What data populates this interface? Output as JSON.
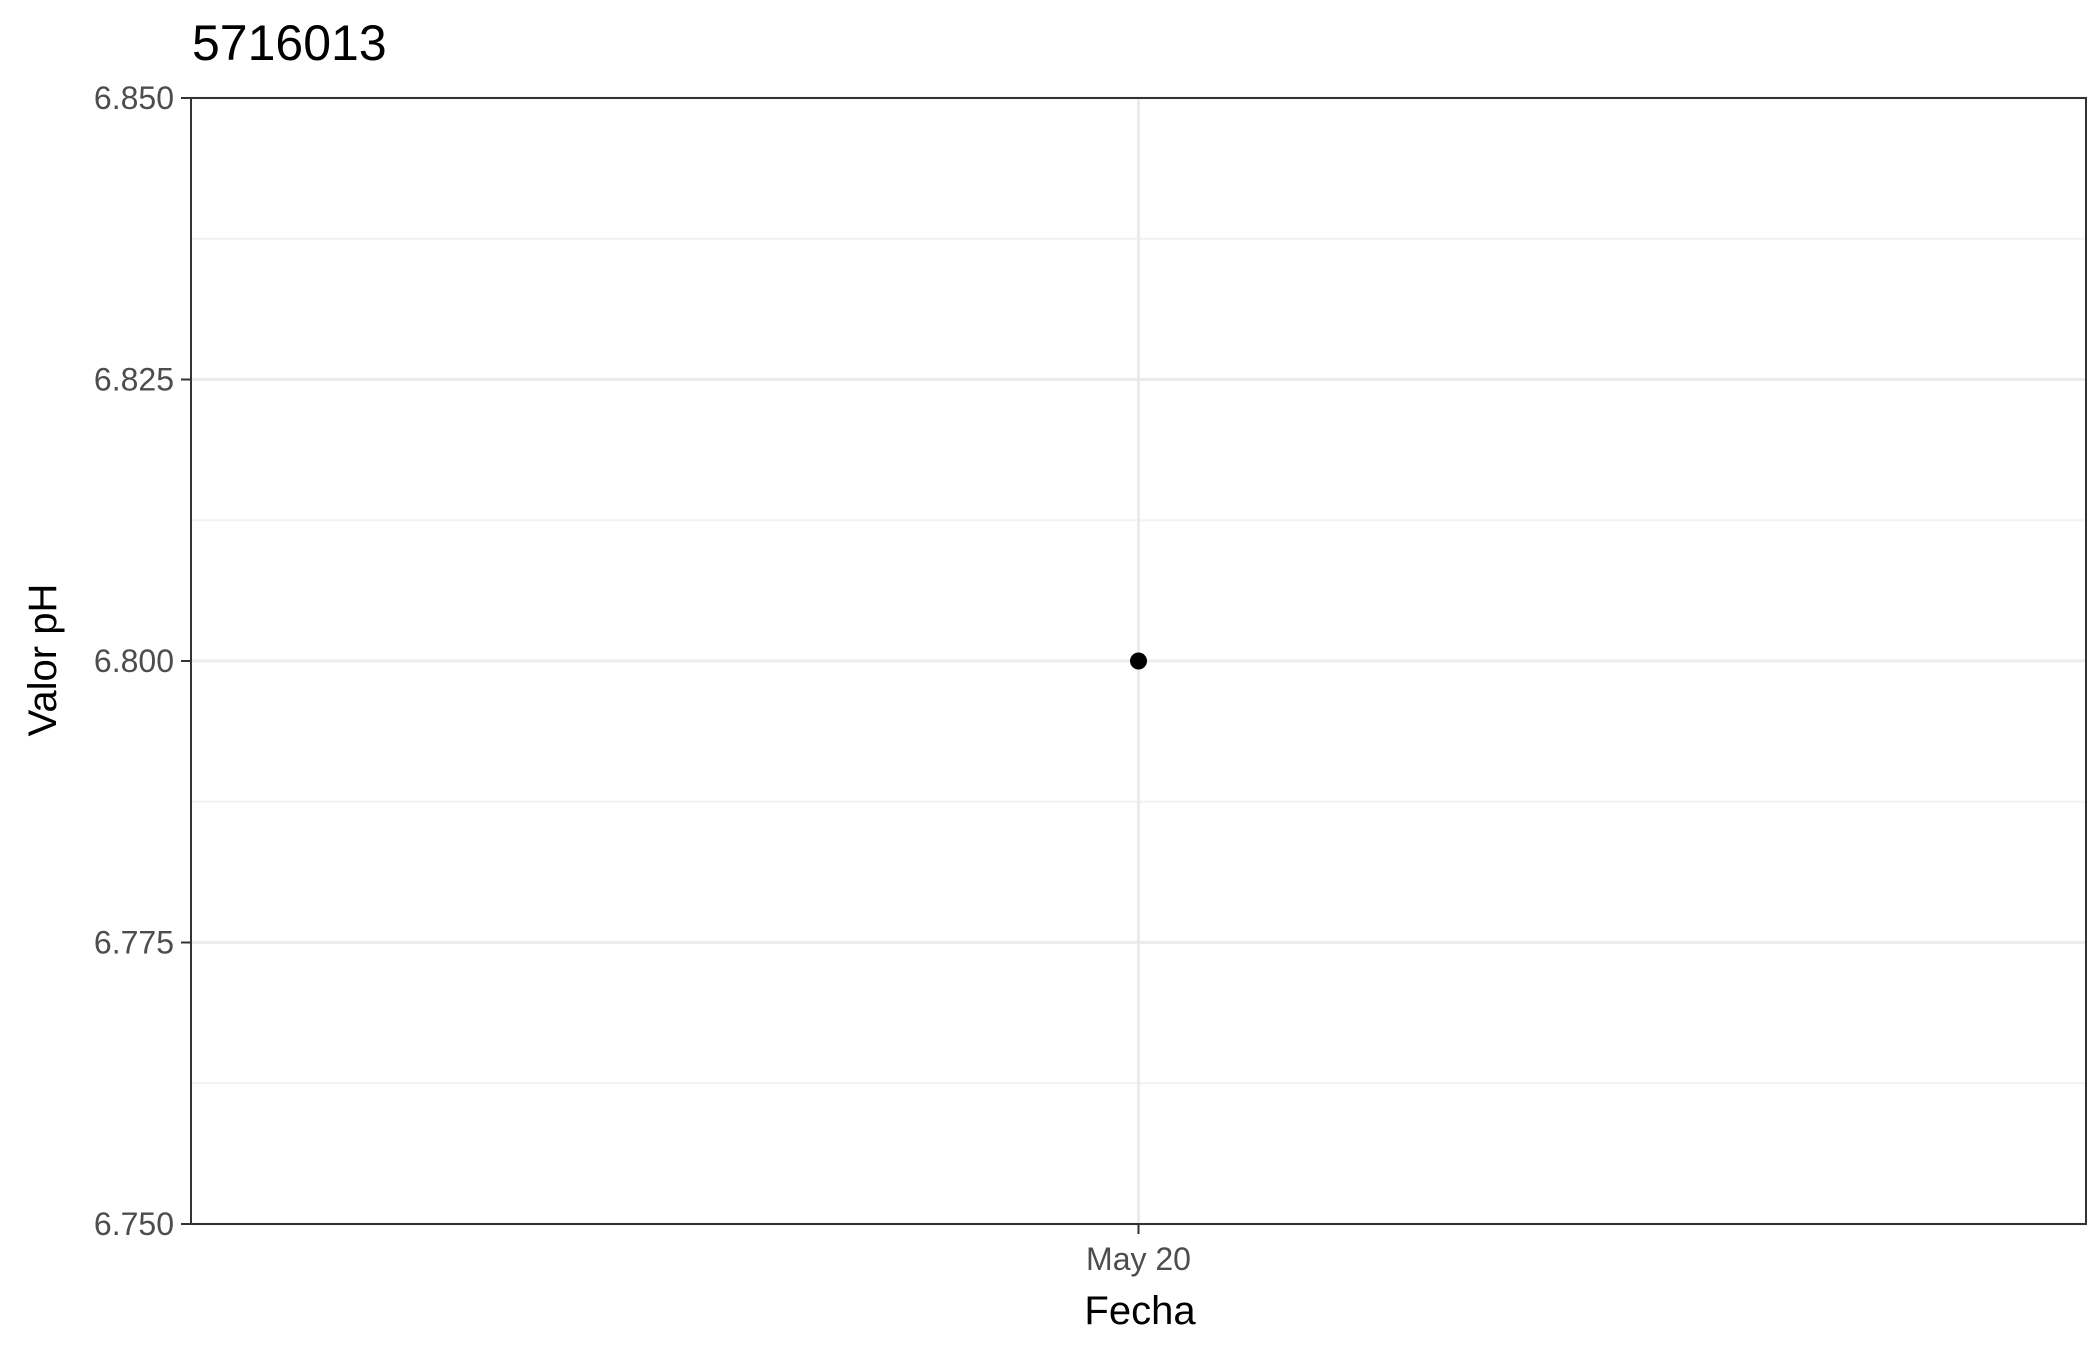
{
  "chart_data": {
    "type": "scatter",
    "title": "5716013",
    "xlabel": "Fecha",
    "ylabel": "Valor pH",
    "x_ticks": [
      "May 20"
    ],
    "y_ticks": [
      "6.750",
      "6.775",
      "6.800",
      "6.825",
      "6.850"
    ],
    "ylim": [
      6.75,
      6.85
    ],
    "grid": true,
    "points": [
      {
        "x": "May 20",
        "y": 6.8
      }
    ],
    "colors": {
      "point": "#000000",
      "grid_major": "#ebebeb",
      "grid_minor": "#f2f2f2",
      "panel_border": "#333333"
    }
  }
}
